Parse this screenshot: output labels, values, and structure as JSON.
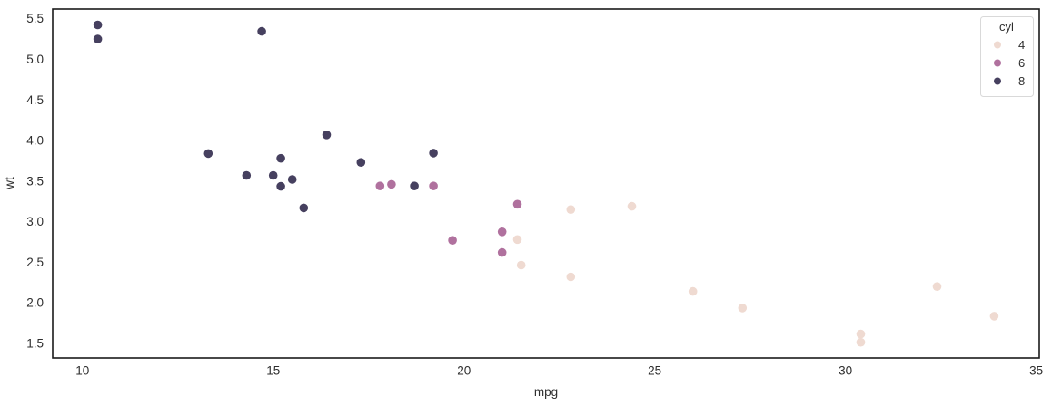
{
  "chart_data": {
    "type": "scatter",
    "title": "",
    "xlabel": "mpg",
    "ylabel": "wt",
    "xlim": [
      9.22,
      35.08
    ],
    "ylim": [
      1.32,
      5.62
    ],
    "xticks": [
      10,
      15,
      20,
      25,
      30,
      35
    ],
    "yticks": [
      1.5,
      2.0,
      2.5,
      3.0,
      3.5,
      4.0,
      4.5,
      5.0,
      5.5
    ],
    "grid": false,
    "legend": {
      "title": "cyl",
      "position": "upper right"
    },
    "series": [
      {
        "name": "4",
        "color": "#efdad1",
        "points": [
          [
            22.8,
            2.32
          ],
          [
            24.4,
            3.19
          ],
          [
            22.8,
            3.15
          ],
          [
            32.4,
            2.2
          ],
          [
            30.4,
            1.615
          ],
          [
            33.9,
            1.835
          ],
          [
            21.5,
            2.465
          ],
          [
            27.3,
            1.935
          ],
          [
            26.0,
            2.14
          ],
          [
            30.4,
            1.513
          ],
          [
            21.4,
            2.78
          ]
        ]
      },
      {
        "name": "6",
        "color": "#b0719e",
        "points": [
          [
            21.0,
            2.62
          ],
          [
            21.0,
            2.875
          ],
          [
            21.4,
            3.215
          ],
          [
            18.1,
            3.46
          ],
          [
            19.2,
            3.44
          ],
          [
            17.8,
            3.44
          ],
          [
            19.7,
            2.77
          ]
        ]
      },
      {
        "name": "8",
        "color": "#46405f",
        "points": [
          [
            18.7,
            3.44
          ],
          [
            14.3,
            3.57
          ],
          [
            16.4,
            4.07
          ],
          [
            17.3,
            3.73
          ],
          [
            15.2,
            3.78
          ],
          [
            10.4,
            5.25
          ],
          [
            10.4,
            5.424
          ],
          [
            14.7,
            5.345
          ],
          [
            15.5,
            3.52
          ],
          [
            15.2,
            3.435
          ],
          [
            13.3,
            3.84
          ],
          [
            19.2,
            3.845
          ],
          [
            15.8,
            3.17
          ],
          [
            15.0,
            3.57
          ]
        ]
      }
    ]
  },
  "colors": {
    "background": "#ffffff",
    "plot_border": "#1a1a1a",
    "tick_text": "#333333",
    "legend_border": "#d9d9d9",
    "legend_background": "#ffffff"
  }
}
